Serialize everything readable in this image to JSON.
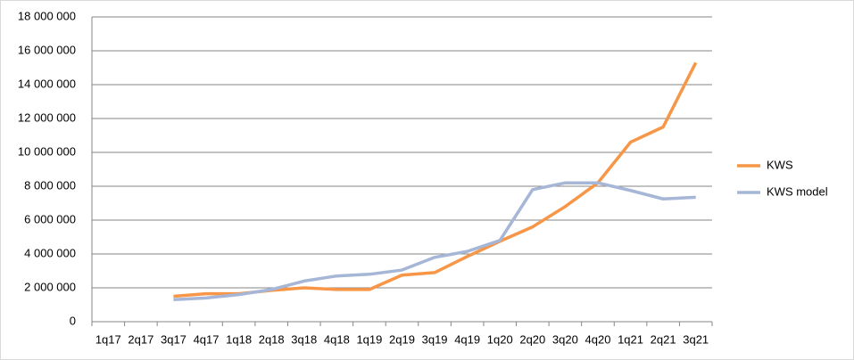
{
  "chart_data": {
    "type": "line",
    "categories": [
      "1q17",
      "2q17",
      "3q17",
      "4q17",
      "1q18",
      "2q18",
      "3q18",
      "4q18",
      "1q19",
      "2q19",
      "3q19",
      "4q19",
      "1q20",
      "2q20",
      "3q20",
      "4q20",
      "1q21",
      "2q21",
      "3q21"
    ],
    "series": [
      {
        "name": "KWS",
        "color": "#f79646",
        "values": [
          null,
          null,
          1500000,
          1650000,
          1650000,
          1850000,
          2000000,
          1900000,
          1900000,
          2750000,
          2900000,
          3850000,
          4750000,
          5600000,
          6800000,
          8200000,
          10600000,
          11500000,
          15300000
        ]
      },
      {
        "name": "KWS model",
        "color": "#a5b6d6",
        "values": [
          null,
          null,
          1300000,
          1400000,
          1600000,
          1900000,
          2400000,
          2700000,
          2800000,
          3050000,
          3800000,
          4150000,
          4800000,
          7800000,
          8200000,
          8200000,
          7750000,
          7250000,
          7350000
        ]
      }
    ],
    "ylim": [
      0,
      18000000
    ],
    "yticks": [
      0,
      {
        "value": 2000000,
        "label": "2 000 000"
      },
      {
        "value": 4000000,
        "label": "4 000 000"
      },
      {
        "value": 6000000,
        "label": "6 000 000"
      },
      {
        "value": 8000000,
        "label": "8 000 000"
      },
      {
        "value": 10000000,
        "label": "10 000 000"
      },
      {
        "value": 12000000,
        "label": "12 000 000"
      },
      {
        "value": 14000000,
        "label": "14 000 000"
      },
      {
        "value": 16000000,
        "label": "16 000 000"
      },
      {
        "value": 18000000,
        "label": "18 000 000"
      }
    ],
    "grid": true,
    "legend": "right"
  }
}
